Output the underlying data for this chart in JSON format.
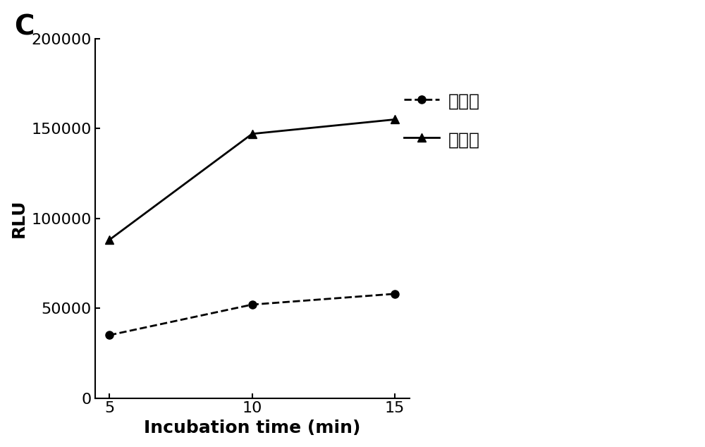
{
  "x": [
    5,
    10,
    15
  ],
  "low_conc": [
    35000,
    52000,
    58000
  ],
  "high_conc": [
    88000,
    147000,
    155000
  ],
  "xlabel": "Incubation time (min)",
  "ylabel": "RLU",
  "panel_label": "C",
  "legend_low": "低浓度",
  "legend_high": "高浓度",
  "ylim": [
    0,
    200000
  ],
  "yticks": [
    0,
    50000,
    100000,
    150000,
    200000
  ],
  "xticks": [
    5,
    10,
    15
  ],
  "line_color": "#000000",
  "background_color": "#ffffff",
  "panel_fontsize": 28,
  "axis_label_fontsize": 18,
  "tick_fontsize": 16,
  "legend_fontsize": 18
}
